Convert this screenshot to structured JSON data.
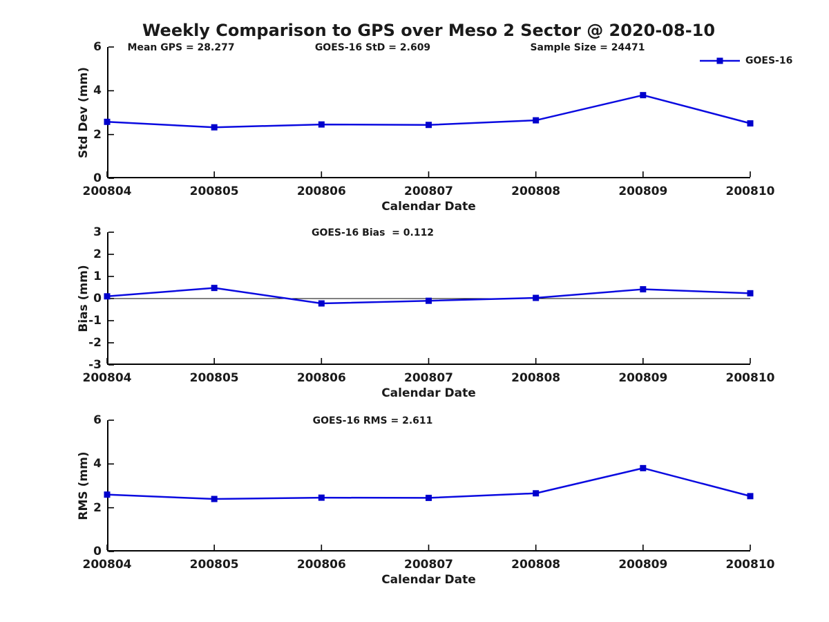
{
  "figure": {
    "title": "Weekly Comparison to GPS over Meso 2 Sector @ 2020-08-10"
  },
  "legend": {
    "label": "GOES-16",
    "position": "top-right"
  },
  "colors": {
    "line": "#0a0ae0",
    "marker": "#0000cc",
    "axis": "#000000",
    "zero_line": "#000000",
    "text": "#1a1a1a",
    "background": "#ffffff"
  },
  "chart_data": [
    {
      "type": "line",
      "name": "std-dev",
      "annotations": [
        "Mean GPS = 28.277",
        "GOES-16 StD = 2.609",
        "Sample Size = 24471"
      ],
      "ylabel": "Std Dev (mm)",
      "xlabel": "Calendar Date",
      "categories": [
        "200804",
        "200805",
        "200806",
        "200807",
        "200808",
        "200809",
        "200810"
      ],
      "ylim": [
        0,
        6
      ],
      "yticks": [
        0,
        2,
        4,
        6
      ],
      "grid": false,
      "zero_line": false,
      "legend_entry": "GOES-16",
      "series": [
        {
          "name": "GOES-16",
          "values": [
            2.58,
            2.33,
            2.46,
            2.44,
            2.65,
            3.8,
            2.51
          ]
        }
      ]
    },
    {
      "type": "line",
      "name": "bias",
      "annotations": [
        "GOES-16 Bias  = 0.112"
      ],
      "ylabel": "Bias (mm)",
      "xlabel": "Calendar Date",
      "categories": [
        "200804",
        "200805",
        "200806",
        "200807",
        "200808",
        "200809",
        "200810"
      ],
      "ylim": [
        -3,
        3
      ],
      "yticks": [
        3,
        2,
        1,
        0,
        -1,
        -2,
        -3
      ],
      "grid": false,
      "zero_line": true,
      "series": [
        {
          "name": "GOES-16",
          "values": [
            0.1,
            0.48,
            -0.22,
            -0.1,
            0.03,
            0.42,
            0.24
          ]
        }
      ]
    },
    {
      "type": "line",
      "name": "rms",
      "annotations": [
        "GOES-16 RMS = 2.611"
      ],
      "ylabel": "RMS (mm)",
      "xlabel": "Calendar Date",
      "categories": [
        "200804",
        "200805",
        "200806",
        "200807",
        "200808",
        "200809",
        "200810"
      ],
      "ylim": [
        0,
        6
      ],
      "yticks": [
        0,
        2,
        4,
        6
      ],
      "grid": false,
      "zero_line": false,
      "series": [
        {
          "name": "GOES-16",
          "values": [
            2.6,
            2.4,
            2.46,
            2.45,
            2.66,
            3.81,
            2.53
          ]
        }
      ]
    }
  ]
}
